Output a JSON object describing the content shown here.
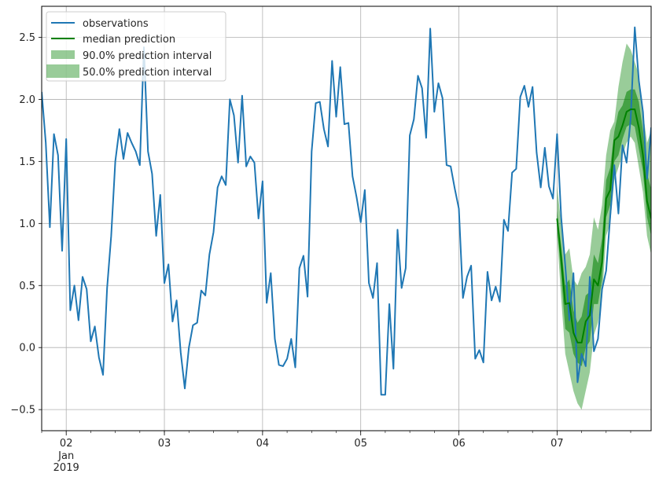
{
  "chart_data": {
    "type": "line",
    "title": "",
    "xlabel": "",
    "ylabel": "",
    "grid": true,
    "legend_placement": "top-left",
    "xlim": [
      "2019-01-01T18:00",
      "2019-01-07T23:00"
    ],
    "ylim": [
      -0.67,
      2.75
    ],
    "y_ticks": [
      -0.5,
      0.0,
      0.5,
      1.0,
      1.5,
      2.0,
      2.5
    ],
    "y_tick_labels": [
      "−0.5",
      "0.0",
      "0.5",
      "1.0",
      "1.5",
      "2.0",
      "2.5"
    ],
    "x_ticks": [
      {
        "x": "2019-01-02",
        "label": "02"
      },
      {
        "x": "2019-01-03",
        "label": "03"
      },
      {
        "x": "2019-01-04",
        "label": "04"
      },
      {
        "x": "2019-01-05",
        "label": "05"
      },
      {
        "x": "2019-01-06",
        "label": "06"
      },
      {
        "x": "2019-01-07",
        "label": "07"
      }
    ],
    "x_secondary_labels": [
      "Jan",
      "2019"
    ],
    "x_secondary_at": "2019-01-02",
    "colors": {
      "observations": "#1f77b4",
      "median": "#008000",
      "interval": "#008000"
    },
    "series": [
      {
        "name": "observations",
        "start": "2019-01-01T18:00",
        "step_hours": 1,
        "values": [
          2.06,
          1.65,
          0.97,
          1.72,
          1.55,
          0.78,
          1.68,
          0.3,
          0.5,
          0.22,
          0.57,
          0.47,
          0.05,
          0.17,
          -0.08,
          -0.22,
          0.48,
          0.9,
          1.5,
          1.76,
          1.52,
          1.73,
          1.65,
          1.58,
          1.47,
          2.42,
          1.58,
          1.4,
          0.9,
          1.23,
          0.52,
          0.67,
          0.21,
          0.38,
          -0.04,
          -0.33,
          0.0,
          0.18,
          0.2,
          0.46,
          0.42,
          0.75,
          0.93,
          1.29,
          1.38,
          1.31,
          2.0,
          1.87,
          1.49,
          2.03,
          1.46,
          1.54,
          1.49,
          1.04,
          1.34,
          0.36,
          0.6,
          0.07,
          -0.14,
          -0.15,
          -0.09,
          0.07,
          -0.16,
          0.64,
          0.74,
          0.41,
          1.58,
          1.97,
          1.98,
          1.76,
          1.62,
          2.31,
          1.86,
          2.26,
          1.8,
          1.81,
          1.38,
          1.21,
          1.01,
          1.27,
          0.52,
          0.4,
          0.68,
          -0.38,
          -0.38,
          0.35,
          -0.17,
          0.95,
          0.48,
          0.64,
          1.71,
          1.84,
          2.19,
          2.09,
          1.69,
          2.57,
          1.9,
          2.13,
          2.01,
          1.47,
          1.46,
          1.28,
          1.12,
          0.4,
          0.57,
          0.66,
          -0.09,
          -0.02,
          -0.12,
          0.61,
          0.38,
          0.49,
          0.37,
          1.03,
          0.94,
          1.41,
          1.44,
          2.02,
          2.11,
          1.94,
          2.1,
          1.57,
          1.29,
          1.61,
          1.3,
          1.2,
          1.72,
          1.05,
          0.66,
          0.22,
          0.6,
          -0.28,
          -0.05,
          -0.15,
          0.57,
          -0.03,
          0.07,
          0.47,
          0.62,
          1.06,
          1.47,
          1.08,
          1.63,
          1.49,
          1.85,
          2.58,
          2.15,
          1.9,
          1.36,
          1.77,
          0.98,
          0.53
        ]
      },
      {
        "name": "median prediction",
        "start": "2019-01-07T00:00",
        "step_hours": 1,
        "values": [
          1.04,
          0.72,
          0.35,
          0.36,
          0.12,
          0.04,
          0.04,
          0.21,
          0.26,
          0.55,
          0.5,
          0.69,
          1.2,
          1.27,
          1.67,
          1.7,
          1.79,
          1.9,
          1.92,
          1.92,
          1.77,
          1.55,
          1.18,
          1.04
        ]
      }
    ],
    "intervals": [
      {
        "name": "90.0% prediction interval",
        "start": "2019-01-07T00:00",
        "step_hours": 1,
        "lower": [
          0.9,
          0.4,
          -0.05,
          -0.2,
          -0.35,
          -0.45,
          -0.5,
          -0.35,
          -0.2,
          0.1,
          0.2,
          0.4,
          0.9,
          1.0,
          1.35,
          1.45,
          1.55,
          1.65,
          1.7,
          1.65,
          1.45,
          1.25,
          0.9,
          0.75
        ],
        "upper": [
          1.3,
          1.0,
          0.75,
          0.8,
          0.55,
          0.5,
          0.6,
          0.65,
          0.75,
          1.05,
          0.95,
          1.15,
          1.55,
          1.75,
          1.82,
          2.1,
          2.3,
          2.45,
          2.4,
          2.3,
          2.2,
          1.9,
          1.65,
          1.75
        ]
      },
      {
        "name": "50.0% prediction interval",
        "start": "2019-01-07T00:00",
        "step_hours": 1,
        "lower": [
          0.98,
          0.58,
          0.15,
          0.12,
          -0.05,
          -0.12,
          -0.15,
          0.0,
          0.05,
          0.35,
          0.35,
          0.55,
          1.05,
          1.15,
          1.5,
          1.55,
          1.68,
          1.78,
          1.8,
          1.78,
          1.6,
          1.42,
          1.05,
          0.9
        ],
        "upper": [
          1.1,
          0.82,
          0.5,
          0.55,
          0.3,
          0.2,
          0.25,
          0.42,
          0.45,
          0.75,
          0.68,
          0.88,
          1.35,
          1.45,
          1.74,
          1.9,
          1.95,
          2.06,
          2.08,
          2.08,
          1.98,
          1.75,
          1.4,
          1.28
        ]
      }
    ],
    "legend": [
      "observations",
      "median prediction",
      "90.0% prediction interval",
      "50.0% prediction interval"
    ]
  }
}
